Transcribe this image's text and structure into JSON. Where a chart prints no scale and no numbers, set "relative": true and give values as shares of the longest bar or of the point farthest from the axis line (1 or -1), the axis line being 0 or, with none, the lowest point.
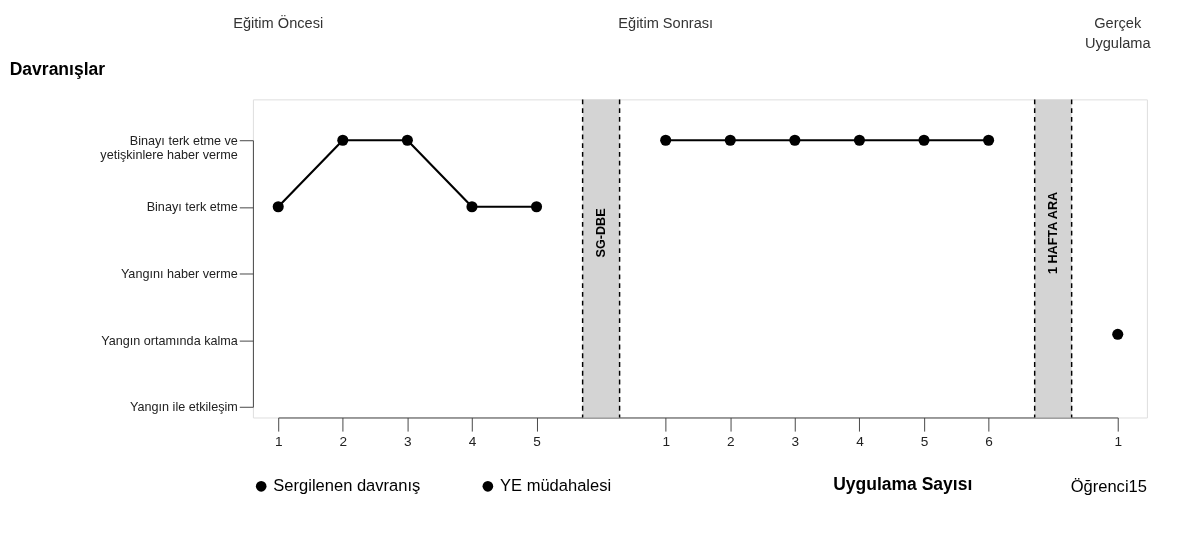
{
  "chart_data": {
    "type": "line",
    "xlabel": "Uygulama Sayısı",
    "categories": [
      "1",
      "2",
      "3",
      "4",
      "5",
      "SG-DBE",
      "1",
      "2",
      "3",
      "4",
      "5",
      "6",
      "1 HAFTA ARA",
      "1"
    ],
    "y_categories": [
      "Binayı terk etme ve yetişkinlere haber verme",
      "Binayı terk etme",
      "Yangını haber verme",
      "Yangın ortamında kalma",
      "Yangın ile etkileşim"
    ],
    "series": [
      {
        "name": "Sergilenen davranış",
        "color": "#000000",
        "values": [
          0.76,
          1,
          1,
          0.76,
          0.76,
          null,
          null,
          null,
          null,
          null,
          null,
          null,
          null,
          null
        ]
      },
      {
        "color": "#000000",
        "values": [
          null,
          null,
          null,
          null,
          null,
          null,
          1,
          1,
          1,
          1,
          1,
          1,
          null,
          null
        ]
      },
      {
        "color": "#000000",
        "values": [
          null,
          null,
          null,
          null,
          null,
          null,
          null,
          null,
          null,
          null,
          null,
          null,
          null,
          0.3
        ]
      },
      {
        "name": "YE müdahalesi",
        "color": "#000000",
        "values": [
          null,
          null,
          null,
          null,
          null,
          null,
          null,
          null,
          null,
          null,
          null,
          null,
          null,
          null
        ]
      }
    ],
    "bands": [
      {
        "axis": "x",
        "from": "SG-DBE",
        "to": "SG-DBE",
        "color": "#d4d4d4"
      },
      {
        "axis": "x",
        "from": "1 HAFTA ARA",
        "to": "1 HAFTA ARA",
        "color": "#d4d4d4"
      }
    ],
    "annotations": [
      "Eğitim Öncesi",
      "Eğitim Sonrası",
      "Gerçek Uygulama",
      "Davranışlar",
      "Öğrenci15"
    ],
    "relative": true,
    "marker": "circle",
    "line_style": "solid",
    "legend": "bottom left",
    "grid": false
  }
}
